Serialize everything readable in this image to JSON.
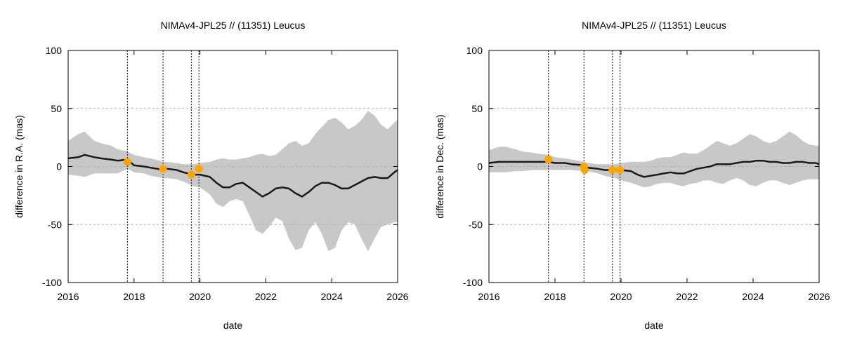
{
  "chart_data": [
    {
      "type": "line",
      "title": "NIMAv4-JPL25 // (11351) Leucus",
      "xlabel": "date",
      "ylabel": "difference in R.A. (mas)",
      "xlim": [
        2016,
        2026
      ],
      "ylim": [
        -100,
        100
      ],
      "xticks": [
        2016,
        2018,
        2020,
        2022,
        2024,
        2026
      ],
      "yticks": [
        -100,
        -50,
        0,
        50,
        100
      ],
      "grid": "y-dashed",
      "vlines": [
        2017.8,
        2018.88,
        2019.74,
        2019.97
      ],
      "series": [
        {
          "role": "difference",
          "color": "#1a1a1a",
          "x": [
            2016.0,
            2016.3,
            2016.5,
            2016.8,
            2017.0,
            2017.3,
            2017.5,
            2017.8,
            2018.0,
            2018.3,
            2018.5,
            2018.9,
            2019.0,
            2019.3,
            2019.5,
            2019.8,
            2020.0,
            2020.3,
            2020.5,
            2020.7,
            2020.9,
            2021.1,
            2021.3,
            2021.5,
            2021.7,
            2021.9,
            2022.1,
            2022.3,
            2022.5,
            2022.7,
            2022.9,
            2023.1,
            2023.3,
            2023.5,
            2023.7,
            2023.9,
            2024.1,
            2024.3,
            2024.5,
            2024.7,
            2024.9,
            2025.1,
            2025.3,
            2025.5,
            2025.7,
            2025.9,
            2026.0
          ],
          "y": [
            7,
            8,
            10,
            8,
            7,
            6,
            5,
            6,
            1,
            0,
            -1,
            -3,
            -2,
            -3,
            -5,
            -7,
            -7,
            -9,
            -14,
            -18,
            -18,
            -15,
            -14,
            -18,
            -22,
            -26,
            -23,
            -19,
            -18,
            -19,
            -23,
            -26,
            -22,
            -17,
            -14,
            -14,
            -16,
            -19,
            -19,
            -16,
            -13,
            -10,
            -9,
            -10,
            -10,
            -5,
            -3
          ]
        },
        {
          "role": "uncertainty-band",
          "color": "#c8c8c8",
          "x": [
            2016.0,
            2016.3,
            2016.5,
            2016.8,
            2017.0,
            2017.3,
            2017.5,
            2017.8,
            2018.0,
            2018.3,
            2018.5,
            2018.9,
            2019.0,
            2019.3,
            2019.5,
            2019.8,
            2020.0,
            2020.3,
            2020.5,
            2020.7,
            2020.9,
            2021.1,
            2021.3,
            2021.5,
            2021.7,
            2021.9,
            2022.1,
            2022.3,
            2022.5,
            2022.7,
            2022.9,
            2023.1,
            2023.3,
            2023.5,
            2023.7,
            2023.9,
            2024.1,
            2024.3,
            2024.5,
            2024.7,
            2024.9,
            2025.1,
            2025.3,
            2025.5,
            2025.7,
            2025.9,
            2026.0
          ],
          "upper": [
            22,
            28,
            30,
            22,
            20,
            18,
            15,
            13,
            10,
            8,
            7,
            4,
            4,
            3,
            2,
            2,
            3,
            4,
            6,
            7,
            6,
            6,
            7,
            8,
            10,
            11,
            9,
            10,
            15,
            20,
            22,
            18,
            20,
            28,
            34,
            40,
            42,
            38,
            32,
            35,
            40,
            48,
            44,
            36,
            32,
            38,
            40
          ],
          "lower": [
            -7,
            -8,
            -9,
            -6,
            -6,
            -6,
            -6,
            -2,
            -5,
            -6,
            -8,
            -10,
            -10,
            -11,
            -13,
            -17,
            -18,
            -24,
            -32,
            -35,
            -30,
            -28,
            -30,
            -42,
            -55,
            -58,
            -52,
            -44,
            -47,
            -62,
            -72,
            -70,
            -55,
            -48,
            -58,
            -73,
            -70,
            -55,
            -48,
            -50,
            -62,
            -73,
            -62,
            -52,
            -50,
            -48,
            -48
          ]
        }
      ],
      "observations": {
        "color": "#ffa500",
        "x": [
          2017.8,
          2018.88,
          2019.74,
          2019.97
        ],
        "y": [
          4,
          -2,
          -7,
          -2
        ]
      }
    },
    {
      "type": "line",
      "title": "NIMAv4-JPL25 // (11351) Leucus",
      "xlabel": "date",
      "ylabel": "difference in Dec. (mas)",
      "xlim": [
        2016,
        2026
      ],
      "ylim": [
        -100,
        100
      ],
      "xticks": [
        2016,
        2018,
        2020,
        2022,
        2024,
        2026
      ],
      "yticks": [
        -100,
        -50,
        0,
        50,
        100
      ],
      "grid": "y-dashed",
      "vlines": [
        2017.8,
        2018.88,
        2019.74,
        2019.97
      ],
      "series": [
        {
          "role": "difference",
          "color": "#1a1a1a",
          "x": [
            2016.0,
            2016.3,
            2016.5,
            2016.8,
            2017.0,
            2017.3,
            2017.5,
            2017.8,
            2018.0,
            2018.3,
            2018.5,
            2018.9,
            2019.0,
            2019.3,
            2019.5,
            2019.8,
            2020.0,
            2020.3,
            2020.5,
            2020.7,
            2020.9,
            2021.1,
            2021.3,
            2021.5,
            2021.7,
            2021.9,
            2022.1,
            2022.3,
            2022.5,
            2022.7,
            2022.9,
            2023.1,
            2023.3,
            2023.5,
            2023.7,
            2023.9,
            2024.1,
            2024.3,
            2024.5,
            2024.7,
            2024.9,
            2025.1,
            2025.3,
            2025.5,
            2025.7,
            2025.9,
            2026.0
          ],
          "y": [
            3,
            4,
            4,
            4,
            4,
            4,
            4,
            4,
            3,
            3,
            2,
            1,
            -1,
            -2,
            -3,
            -3,
            -3,
            -4,
            -7,
            -9,
            -8,
            -7,
            -6,
            -5,
            -6,
            -6,
            -4,
            -2,
            -1,
            0,
            2,
            2,
            2,
            3,
            4,
            4,
            5,
            5,
            4,
            4,
            3,
            3,
            4,
            4,
            3,
            3,
            2
          ]
        },
        {
          "role": "uncertainty-band",
          "color": "#c8c8c8",
          "x": [
            2016.0,
            2016.3,
            2016.5,
            2016.8,
            2017.0,
            2017.3,
            2017.5,
            2017.8,
            2018.0,
            2018.3,
            2018.5,
            2018.9,
            2019.0,
            2019.3,
            2019.5,
            2019.8,
            2020.0,
            2020.3,
            2020.5,
            2020.7,
            2020.9,
            2021.1,
            2021.3,
            2021.5,
            2021.7,
            2021.9,
            2022.1,
            2022.3,
            2022.5,
            2022.7,
            2022.9,
            2023.1,
            2023.3,
            2023.5,
            2023.7,
            2023.9,
            2024.1,
            2024.3,
            2024.5,
            2024.7,
            2024.9,
            2025.1,
            2025.3,
            2025.5,
            2025.7,
            2025.9,
            2026.0
          ],
          "upper": [
            14,
            17,
            17,
            15,
            13,
            12,
            11,
            10,
            8,
            7,
            6,
            4,
            3,
            2,
            2,
            2,
            3,
            4,
            4,
            4,
            5,
            7,
            8,
            8,
            10,
            12,
            11,
            11,
            14,
            18,
            22,
            20,
            18,
            20,
            24,
            28,
            26,
            22,
            20,
            22,
            26,
            30,
            27,
            22,
            19,
            18,
            18
          ],
          "lower": [
            -5,
            -5,
            -5,
            -4,
            -4,
            -3,
            -3,
            -3,
            -3,
            -3,
            -3,
            -4,
            -4,
            -6,
            -8,
            -10,
            -12,
            -14,
            -16,
            -18,
            -17,
            -15,
            -14,
            -14,
            -16,
            -17,
            -15,
            -14,
            -12,
            -12,
            -14,
            -15,
            -12,
            -10,
            -12,
            -16,
            -17,
            -14,
            -12,
            -12,
            -14,
            -16,
            -14,
            -12,
            -11,
            -11,
            -11
          ]
        }
      ],
      "observations": {
        "color": "#ffa500",
        "x": [
          2017.8,
          2018.88,
          2018.9,
          2019.74,
          2019.97
        ],
        "y": [
          6,
          0,
          -3,
          -3,
          -3
        ]
      }
    }
  ]
}
